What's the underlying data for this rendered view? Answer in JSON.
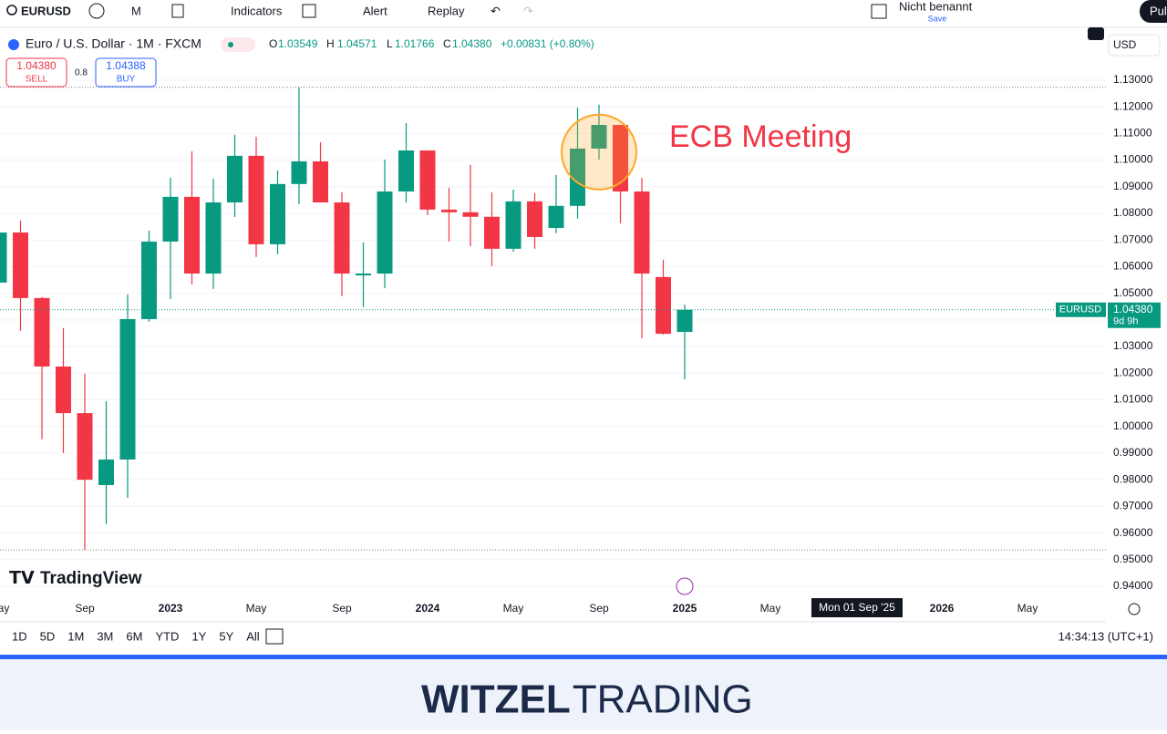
{
  "toolbar": {
    "symbol": "EURUSD",
    "interval": "M",
    "indicators": "Indicators",
    "alert": "Alert",
    "replay": "Replay",
    "layout_name": "Nicht benannt",
    "save": "Save",
    "publish": "Pul"
  },
  "legend": {
    "instrument": "Euro / U.S. Dollar · 1M · FXCM",
    "o_key": "O",
    "o": "1.03549",
    "h_key": "H",
    "h": "1.04571",
    "l_key": "L",
    "l": "1.01766",
    "c_key": "C",
    "c": "1.04380",
    "change": "+0.00831 (+0.80%)"
  },
  "trade": {
    "sell_price": "1.04380",
    "sell": "SELL",
    "spread": "0.8",
    "buy_price": "1.04388",
    "buy": "BUY"
  },
  "price_axis": {
    "currency": "USD",
    "symbol_label": "EURUSD",
    "last_price": "1.04380",
    "countdown": "9d 9h"
  },
  "crosshair_label": "Mon 01 Sep '25",
  "watermark": "TradingView",
  "range_buttons": [
    "1D",
    "5D",
    "1M",
    "3M",
    "6M",
    "YTD",
    "1Y",
    "5Y",
    "All"
  ],
  "clock": "14:34:13 (UTC+1)",
  "footer": {
    "brand_bold": "WITZEL",
    "brand_light": "TRADING"
  },
  "chart_data": {
    "type": "candlestick",
    "annotation": "ECB Meeting",
    "categories": [
      "May",
      null,
      null,
      null,
      "Sep",
      null,
      null,
      null,
      "2023",
      null,
      null,
      null,
      "May",
      null,
      null,
      null,
      "Sep",
      null,
      null,
      null,
      "2024",
      null,
      null,
      null,
      "May",
      null,
      null,
      null,
      "Sep",
      null,
      null,
      null,
      "2025",
      null,
      null,
      null,
      "May",
      null,
      null,
      null,
      null,
      null,
      null,
      null,
      "2026",
      null,
      null,
      null,
      "May"
    ],
    "up_color": "#089981",
    "down_color": "#f23645",
    "open": [
      1.054,
      1.0728,
      1.0482,
      1.0225,
      1.005,
      0.978,
      0.9876,
      1.0403,
      1.0694,
      1.0862,
      1.0574,
      1.0841,
      1.1016,
      1.0684,
      1.091,
      1.0995,
      1.0841,
      1.0567,
      1.0574,
      1.0882,
      1.1036,
      1.0814,
      1.0804,
      1.0787,
      1.0667,
      1.0845,
      1.0745,
      1.0828,
      1.1043,
      1.1132,
      1.0882,
      1.0561,
      1.03549,
      null,
      null,
      null,
      null,
      null,
      null,
      null,
      null,
      null,
      null,
      null,
      null,
      null,
      null,
      null,
      null
    ],
    "high": [
      1.0786,
      1.0773,
      1.0486,
      1.0369,
      1.0198,
      1.0095,
      1.0496,
      1.0735,
      1.0934,
      1.1033,
      1.093,
      1.1095,
      1.1088,
      1.0961,
      1.1273,
      1.1067,
      1.0879,
      1.0691,
      1.1002,
      1.1139,
      1.1036,
      1.0896,
      1.0982,
      1.0879,
      1.0889,
      1.0876,
      1.0944,
      1.1197,
      1.1208,
      1.1132,
      1.0934,
      1.0626,
      1.04571,
      null,
      null,
      null,
      null,
      null,
      null,
      null,
      null,
      null,
      null,
      null,
      null,
      null,
      null,
      null,
      null
    ],
    "low": [
      1.035,
      1.0359,
      0.9952,
      0.99,
      0.9537,
      0.9633,
      0.9732,
      1.0393,
      1.0478,
      1.0533,
      1.0516,
      1.0786,
      1.0636,
      1.0646,
      1.0834,
      1.0841,
      1.0489,
      1.0448,
      1.0519,
      1.0841,
      1.0793,
      1.0694,
      1.0677,
      1.0602,
      1.0656,
      1.0667,
      1.0725,
      1.078,
      1.1002,
      1.0763,
      1.0331,
      1.0345,
      1.01766,
      null,
      null,
      null,
      null,
      null,
      null,
      null,
      null,
      null,
      null,
      null,
      null,
      null,
      null,
      null,
      null
    ],
    "close": [
      1.0728,
      1.0482,
      1.0225,
      1.005,
      0.98,
      0.9876,
      1.0403,
      1.0694,
      1.0862,
      1.0574,
      1.0841,
      1.1016,
      1.0684,
      1.091,
      1.0995,
      1.0841,
      1.0574,
      1.0574,
      1.0882,
      1.1036,
      1.0814,
      1.0804,
      1.0787,
      1.0667,
      1.0845,
      1.0711,
      1.0828,
      1.1043,
      1.1132,
      1.0882,
      1.0574,
      1.0348,
      1.0438,
      null,
      null,
      null,
      null,
      null,
      null,
      null,
      null,
      null,
      null,
      null,
      null,
      null,
      null,
      null,
      null
    ],
    "ylim": [
      0.9359,
      1.1481
    ],
    "yticks": [
      {
        "value": 0.94,
        "label": "0.94000"
      },
      {
        "value": 0.95,
        "label": "0.95000"
      },
      {
        "value": 0.96,
        "label": "0.96000"
      },
      {
        "value": 0.97,
        "label": "0.97000"
      },
      {
        "value": 0.98,
        "label": "0.98000"
      },
      {
        "value": 0.99,
        "label": "0.99000"
      },
      {
        "value": 1.0,
        "label": "1.00000"
      },
      {
        "value": 1.01,
        "label": "1.01000"
      },
      {
        "value": 1.02,
        "label": "1.02000"
      },
      {
        "value": 1.03,
        "label": "1.03000"
      },
      {
        "value": 1.04,
        "label": "1.04000"
      },
      {
        "value": 1.05,
        "label": "1.05000"
      },
      {
        "value": 1.06,
        "label": "1.06000"
      },
      {
        "value": 1.07,
        "label": "1.07000"
      },
      {
        "value": 1.08,
        "label": "1.08000"
      },
      {
        "value": 1.09,
        "label": "1.09000"
      },
      {
        "value": 1.1,
        "label": "1.10000"
      },
      {
        "value": 1.11,
        "label": "1.11000"
      },
      {
        "value": 1.12,
        "label": "1.12000"
      },
      {
        "value": 1.13,
        "label": "1.13000"
      }
    ],
    "grid": true
  }
}
